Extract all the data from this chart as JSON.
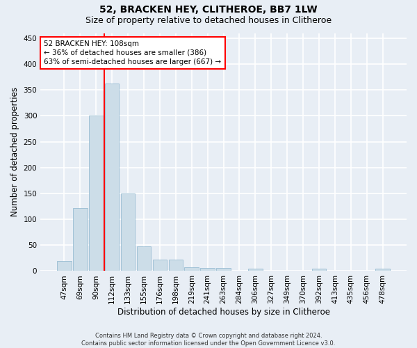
{
  "title": "52, BRACKEN HEY, CLITHEROE, BB7 1LW",
  "subtitle": "Size of property relative to detached houses in Clitheroe",
  "xlabel": "Distribution of detached houses by size in Clitheroe",
  "ylabel": "Number of detached properties",
  "footer_line1": "Contains HM Land Registry data © Crown copyright and database right 2024.",
  "footer_line2": "Contains public sector information licensed under the Open Government Licence v3.0.",
  "categories": [
    "47sqm",
    "69sqm",
    "90sqm",
    "112sqm",
    "133sqm",
    "155sqm",
    "176sqm",
    "198sqm",
    "219sqm",
    "241sqm",
    "263sqm",
    "284sqm",
    "306sqm",
    "327sqm",
    "349sqm",
    "370sqm",
    "392sqm",
    "413sqm",
    "435sqm",
    "456sqm",
    "478sqm"
  ],
  "values": [
    20,
    122,
    300,
    362,
    150,
    48,
    22,
    22,
    8,
    6,
    6,
    0,
    4,
    0,
    0,
    0,
    4,
    0,
    0,
    0,
    4
  ],
  "bar_color": "#ccdde8",
  "bar_edge_color": "#8ab4cc",
  "vline_color": "red",
  "vline_bar_index": 3,
  "annotation_text": "52 BRACKEN HEY: 108sqm\n← 36% of detached houses are smaller (386)\n63% of semi-detached houses are larger (667) →",
  "annotation_box_facecolor": "white",
  "annotation_box_edgecolor": "red",
  "ylim": [
    0,
    460
  ],
  "yticks": [
    0,
    50,
    100,
    150,
    200,
    250,
    300,
    350,
    400,
    450
  ],
  "background_color": "#e8eef5",
  "plot_bg_color": "#e8eef5",
  "grid_color": "white",
  "title_fontsize": 10,
  "subtitle_fontsize": 9,
  "tick_fontsize": 7.5,
  "xlabel_fontsize": 8.5,
  "ylabel_fontsize": 8.5,
  "annotation_fontsize": 7.5,
  "footer_fontsize": 6.0
}
